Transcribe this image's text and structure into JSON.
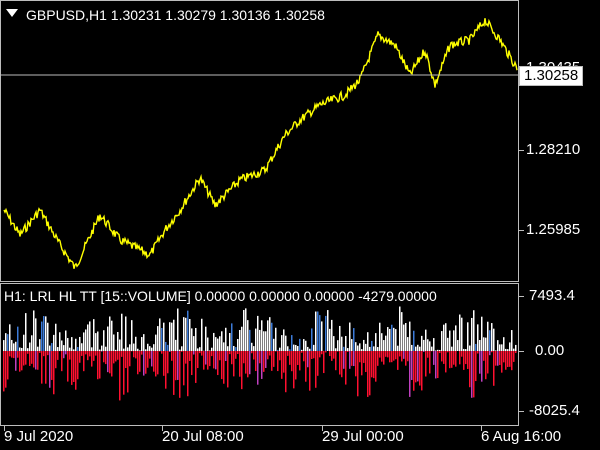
{
  "main": {
    "symbol_line": "GBPUSD,H1  1.30231 1.30279 1.30136 1.30258",
    "current_price": "1.30258",
    "hidden_price": "1.30435",
    "price_labels": [
      "1.28210",
      "1.25985"
    ]
  },
  "indicator": {
    "title": "H1: LRL HL TT [15::VOLUME] 0.00000 0.00000 0.00000 -4279.00000",
    "levels": [
      "7493.4",
      "0.00",
      "-8025.4"
    ]
  },
  "time_axis": {
    "labels": [
      "9 Jul 2020",
      "20 Jul 08:00",
      "29 Jul 00:00",
      "6 Aug 16:00"
    ]
  },
  "colors": {
    "background": "#000000",
    "price_line": "#ffff00",
    "hist_positive": "#ffffff",
    "hist_negative": "#ff1030",
    "hist_accent_pos": "#3d7bd9",
    "hist_accent_neg": "#c040c0",
    "grid": "#bdbdbd"
  },
  "icons": {
    "menu": "triangle-down-icon"
  }
}
